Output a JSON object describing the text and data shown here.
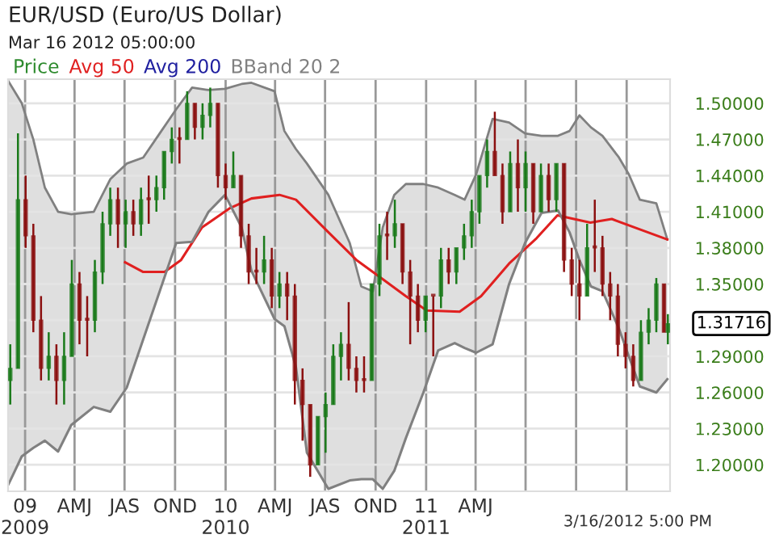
{
  "chart_data": {
    "type": "candlestick",
    "title": "EUR/USD (Euro/US Dollar)",
    "subtitle": "Mar 16 2012 05:00:00",
    "series": [
      {
        "name": "Price",
        "color": "#2e8b2e",
        "x": [
          "2008-12-05",
          "2008-12-19",
          "2009-01-02",
          "2009-01-16",
          "2009-01-30",
          "2009-02-13",
          "2009-02-27",
          "2009-03-13",
          "2009-03-27",
          "2009-04-10",
          "2009-04-24",
          "2009-05-08",
          "2009-05-22",
          "2009-06-05",
          "2009-06-19",
          "2009-07-03",
          "2009-07-17",
          "2009-07-31",
          "2009-08-14",
          "2009-08-28",
          "2009-09-11",
          "2009-09-25",
          "2009-10-09",
          "2009-10-23",
          "2009-11-06",
          "2009-11-20",
          "2009-12-04",
          "2009-12-18",
          "2010-01-01",
          "2010-01-15",
          "2010-01-29",
          "2010-02-12",
          "2010-02-26",
          "2010-03-12",
          "2010-03-26",
          "2010-04-09",
          "2010-04-23",
          "2010-05-07",
          "2010-05-21",
          "2010-06-04",
          "2010-06-18",
          "2010-07-02",
          "2010-07-16",
          "2010-07-30",
          "2010-08-13",
          "2010-08-27",
          "2010-09-10",
          "2010-09-24",
          "2010-10-08",
          "2010-10-22",
          "2010-11-05",
          "2010-11-19",
          "2010-12-03",
          "2010-12-17",
          "2010-12-31",
          "2011-01-14",
          "2011-01-28",
          "2011-02-11",
          "2011-02-25",
          "2011-03-11",
          "2011-03-25",
          "2011-04-08",
          "2011-04-22",
          "2011-05-06",
          "2011-05-20",
          "2011-06-03",
          "2011-06-17",
          "2011-07-01",
          "2011-07-15",
          "2011-07-29",
          "2011-08-12",
          "2011-08-26",
          "2011-09-09",
          "2011-09-23",
          "2011-10-07",
          "2011-10-21",
          "2011-11-04",
          "2011-11-18",
          "2011-12-02",
          "2011-12-16",
          "2011-12-30",
          "2012-01-13",
          "2012-01-27",
          "2012-02-10",
          "2012-02-24",
          "2012-03-09",
          "2012-03-16"
        ],
        "ohlc": [
          [
            1.27,
            1.3,
            1.25,
            1.28
          ],
          [
            1.28,
            1.475,
            1.28,
            1.42
          ],
          [
            1.42,
            1.44,
            1.38,
            1.39
          ],
          [
            1.39,
            1.4,
            1.31,
            1.32
          ],
          [
            1.32,
            1.34,
            1.27,
            1.28
          ],
          [
            1.28,
            1.31,
            1.27,
            1.29
          ],
          [
            1.29,
            1.3,
            1.25,
            1.27
          ],
          [
            1.27,
            1.31,
            1.25,
            1.29
          ],
          [
            1.29,
            1.37,
            1.29,
            1.35
          ],
          [
            1.35,
            1.36,
            1.3,
            1.32
          ],
          [
            1.32,
            1.34,
            1.29,
            1.32
          ],
          [
            1.32,
            1.37,
            1.31,
            1.36
          ],
          [
            1.36,
            1.41,
            1.35,
            1.4
          ],
          [
            1.4,
            1.43,
            1.39,
            1.42
          ],
          [
            1.42,
            1.43,
            1.38,
            1.4
          ],
          [
            1.4,
            1.42,
            1.38,
            1.41
          ],
          [
            1.41,
            1.42,
            1.39,
            1.4
          ],
          [
            1.4,
            1.43,
            1.39,
            1.42
          ],
          [
            1.42,
            1.44,
            1.4,
            1.42
          ],
          [
            1.42,
            1.44,
            1.41,
            1.43
          ],
          [
            1.43,
            1.46,
            1.42,
            1.46
          ],
          [
            1.46,
            1.48,
            1.45,
            1.47
          ],
          [
            1.47,
            1.48,
            1.45,
            1.47
          ],
          [
            1.47,
            1.51,
            1.47,
            1.5
          ],
          [
            1.5,
            1.5,
            1.47,
            1.48
          ],
          [
            1.48,
            1.5,
            1.47,
            1.49
          ],
          [
            1.49,
            1.513,
            1.48,
            1.5
          ],
          [
            1.5,
            1.5,
            1.43,
            1.44
          ],
          [
            1.44,
            1.45,
            1.42,
            1.43
          ],
          [
            1.43,
            1.46,
            1.43,
            1.44
          ],
          [
            1.44,
            1.44,
            1.38,
            1.39
          ],
          [
            1.39,
            1.4,
            1.35,
            1.36
          ],
          [
            1.36,
            1.38,
            1.35,
            1.36
          ],
          [
            1.36,
            1.39,
            1.35,
            1.37
          ],
          [
            1.37,
            1.38,
            1.33,
            1.34
          ],
          [
            1.34,
            1.36,
            1.33,
            1.35
          ],
          [
            1.35,
            1.36,
            1.32,
            1.34
          ],
          [
            1.34,
            1.35,
            1.25,
            1.27
          ],
          [
            1.27,
            1.28,
            1.22,
            1.25
          ],
          [
            1.25,
            1.25,
            1.19,
            1.2
          ],
          [
            1.2,
            1.24,
            1.2,
            1.24
          ],
          [
            1.24,
            1.26,
            1.21,
            1.25
          ],
          [
            1.25,
            1.3,
            1.25,
            1.29
          ],
          [
            1.29,
            1.31,
            1.27,
            1.3
          ],
          [
            1.3,
            1.335,
            1.27,
            1.28
          ],
          [
            1.28,
            1.29,
            1.26,
            1.27
          ],
          [
            1.27,
            1.29,
            1.26,
            1.27
          ],
          [
            1.27,
            1.35,
            1.27,
            1.35
          ],
          [
            1.35,
            1.4,
            1.34,
            1.39
          ],
          [
            1.39,
            1.41,
            1.37,
            1.39
          ],
          [
            1.39,
            1.42,
            1.38,
            1.4
          ],
          [
            1.4,
            1.4,
            1.35,
            1.36
          ],
          [
            1.36,
            1.37,
            1.3,
            1.34
          ],
          [
            1.34,
            1.35,
            1.31,
            1.32
          ],
          [
            1.32,
            1.34,
            1.31,
            1.34
          ],
          [
            1.34,
            1.34,
            1.29,
            1.34
          ],
          [
            1.34,
            1.38,
            1.33,
            1.37
          ],
          [
            1.37,
            1.38,
            1.35,
            1.36
          ],
          [
            1.36,
            1.38,
            1.35,
            1.38
          ],
          [
            1.38,
            1.4,
            1.37,
            1.39
          ],
          [
            1.39,
            1.42,
            1.38,
            1.41
          ],
          [
            1.41,
            1.44,
            1.4,
            1.44
          ],
          [
            1.44,
            1.47,
            1.43,
            1.46
          ],
          [
            1.46,
            1.493,
            1.44,
            1.44
          ],
          [
            1.44,
            1.45,
            1.4,
            1.41
          ],
          [
            1.41,
            1.46,
            1.41,
            1.45
          ],
          [
            1.45,
            1.47,
            1.41,
            1.43
          ],
          [
            1.43,
            1.46,
            1.41,
            1.45
          ],
          [
            1.45,
            1.45,
            1.4,
            1.41
          ],
          [
            1.41,
            1.45,
            1.41,
            1.44
          ],
          [
            1.44,
            1.45,
            1.41,
            1.42
          ],
          [
            1.42,
            1.45,
            1.41,
            1.45
          ],
          [
            1.45,
            1.45,
            1.36,
            1.37
          ],
          [
            1.37,
            1.38,
            1.34,
            1.35
          ],
          [
            1.35,
            1.37,
            1.32,
            1.34
          ],
          [
            1.34,
            1.4,
            1.34,
            1.38
          ],
          [
            1.38,
            1.42,
            1.36,
            1.38
          ],
          [
            1.38,
            1.39,
            1.34,
            1.35
          ],
          [
            1.35,
            1.36,
            1.32,
            1.34
          ],
          [
            1.34,
            1.35,
            1.29,
            1.3
          ],
          [
            1.3,
            1.31,
            1.28,
            1.29
          ],
          [
            1.29,
            1.3,
            1.265,
            1.27
          ],
          [
            1.27,
            1.32,
            1.27,
            1.31
          ],
          [
            1.31,
            1.33,
            1.3,
            1.32
          ],
          [
            1.32,
            1.355,
            1.31,
            1.35
          ],
          [
            1.35,
            1.35,
            1.31,
            1.31
          ],
          [
            1.31,
            1.325,
            1.3,
            1.317
          ]
        ],
        "colors": [
          "#1a7a1a",
          "#1a7a1a",
          "#8b1010",
          "#8b1010",
          "#8b1010",
          "#1a7a1a",
          "#8b1010",
          "#1a7a1a",
          "#1a7a1a",
          "#8b1010",
          "#8b1010",
          "#1a7a1a",
          "#1a7a1a",
          "#1a7a1a",
          "#8b1010",
          "#1a7a1a",
          "#8b1010",
          "#1a7a1a",
          "#8b1010",
          "#1a7a1a",
          "#1a7a1a",
          "#1a7a1a",
          "#8b1010",
          "#1a7a1a",
          "#8b1010",
          "#1a7a1a",
          "#1a7a1a",
          "#8b1010",
          "#8b1010",
          "#1a7a1a",
          "#8b1010",
          "#8b1010",
          "#8b1010",
          "#1a7a1a",
          "#8b1010",
          "#1a7a1a",
          "#8b1010",
          "#8b1010",
          "#8b1010",
          "#8b1010",
          "#1a7a1a",
          "#1a7a1a",
          "#1a7a1a",
          "#1a7a1a",
          "#8b1010",
          "#8b1010",
          "#8b1010",
          "#1a7a1a",
          "#1a7a1a",
          "#8b1010",
          "#1a7a1a",
          "#8b1010",
          "#8b1010",
          "#8b1010",
          "#1a7a1a",
          "#8b1010",
          "#1a7a1a",
          "#8b1010",
          "#1a7a1a",
          "#1a7a1a",
          "#1a7a1a",
          "#1a7a1a",
          "#1a7a1a",
          "#8b1010",
          "#8b1010",
          "#1a7a1a",
          "#8b1010",
          "#1a7a1a",
          "#8b1010",
          "#1a7a1a",
          "#8b1010",
          "#1a7a1a",
          "#8b1010",
          "#8b1010",
          "#8b1010",
          "#1a7a1a",
          "#8b1010",
          "#8b1010",
          "#8b1010",
          "#8b1010",
          "#8b1010",
          "#8b1010",
          "#1a7a1a",
          "#1a7a1a",
          "#1a7a1a",
          "#8b1010",
          "#1a7a1a"
        ]
      },
      {
        "name": "Avg 50",
        "type": "line",
        "color": "#e02020",
        "x": [
          "2009-07-02",
          "2009-08-04",
          "2009-09-12",
          "2009-10-12",
          "2009-11-19",
          "2010-01-09",
          "2010-02-17",
          "2010-04-09",
          "2010-05-09",
          "2010-07-07",
          "2010-08-27",
          "2010-10-05",
          "2010-11-25",
          "2011-01-02",
          "2011-03-03",
          "2011-04-11",
          "2011-06-01",
          "2011-07-21",
          "2011-08-28",
          "2011-10-27",
          "2011-12-05",
          "2012-01-15",
          "2012-03-15"
        ],
        "values": [
          1.368,
          1.36,
          1.36,
          1.37,
          1.397,
          1.413,
          1.421,
          1.424,
          1.42,
          1.393,
          1.37,
          1.357,
          1.34,
          1.328,
          1.327,
          1.34,
          1.367,
          1.388,
          1.407,
          1.401,
          1.404,
          1.397,
          1.387
        ]
      },
      {
        "name": "Avg 200",
        "type": "line",
        "color": "#2020a0"
      },
      {
        "name": "BBand 20 2",
        "type": "area",
        "color": "#808080",
        "x": [
          "2008-12-02",
          "2008-12-26",
          "2009-01-16",
          "2009-02-06",
          "2009-03-02",
          "2009-03-26",
          "2009-05-06",
          "2009-06-05",
          "2009-07-05",
          "2009-08-04",
          "2009-09-03",
          "2009-10-03",
          "2009-11-01",
          "2009-12-01",
          "2009-12-31",
          "2010-01-30",
          "2010-02-17",
          "2010-03-31",
          "2010-04-18",
          "2010-05-09",
          "2010-05-29",
          "2010-07-07",
          "2010-08-15",
          "2010-09-05",
          "2010-09-26",
          "2010-10-14",
          "2010-11-04",
          "2010-11-25",
          "2010-12-27",
          "2011-01-23",
          "2011-02-22",
          "2011-03-12",
          "2011-04-02",
          "2011-05-02",
          "2011-06-01",
          "2011-06-30",
          "2011-07-30",
          "2011-08-29",
          "2011-09-19",
          "2011-10-07",
          "2011-10-28",
          "2011-11-18",
          "2011-12-18",
          "2012-01-05",
          "2012-01-25",
          "2012-02-24",
          "2012-03-15"
        ],
        "values": [
          1.518,
          1.5,
          1.47,
          1.43,
          1.41,
          1.408,
          1.41,
          1.437,
          1.45,
          1.455,
          1.475,
          1.495,
          1.513,
          1.511,
          1.512,
          1.516,
          1.517,
          1.51,
          1.477,
          1.462,
          1.45,
          1.424,
          1.384,
          1.348,
          1.344,
          1.397,
          1.424,
          1.433,
          1.433,
          1.43,
          1.424,
          1.42,
          1.441,
          1.487,
          1.484,
          1.475,
          1.473,
          1.473,
          1.477,
          1.49,
          1.48,
          1.473,
          1.455,
          1.441,
          1.42,
          1.417,
          1.387
        ]
      },
      {
        "type": "line",
        "color": "#808080",
        "x": [
          "2008-12-02",
          "2008-12-26",
          "2009-01-16",
          "2009-02-06",
          "2009-03-02",
          "2009-03-26",
          "2009-05-06",
          "2009-06-05",
          "2009-07-05",
          "2009-08-04",
          "2009-09-03",
          "2009-10-03",
          "2009-11-01",
          "2009-12-01",
          "2009-12-31",
          "2010-01-30",
          "2010-02-17",
          "2010-03-31",
          "2010-04-18",
          "2010-05-09",
          "2010-05-29",
          "2010-07-07",
          "2010-08-15",
          "2010-09-05",
          "2010-09-26",
          "2010-10-14",
          "2010-11-04",
          "2010-11-25",
          "2010-12-27",
          "2011-01-23",
          "2011-02-22",
          "2011-03-12",
          "2011-04-02",
          "2011-05-02",
          "2011-06-01",
          "2011-06-30",
          "2011-07-30",
          "2011-08-29",
          "2011-09-19",
          "2011-10-07",
          "2011-10-28",
          "2011-11-18",
          "2011-12-18",
          "2012-01-05",
          "2012-01-25",
          "2012-02-24",
          "2012-03-15"
        ],
        "values": [
          1.184,
          1.207,
          1.214,
          1.22,
          1.211,
          1.233,
          1.248,
          1.244,
          1.264,
          1.304,
          1.344,
          1.384,
          1.385,
          1.41,
          1.424,
          1.397,
          1.361,
          1.321,
          1.315,
          1.281,
          1.21,
          1.18,
          1.187,
          1.188,
          1.188,
          1.18,
          1.195,
          1.222,
          1.26,
          1.295,
          1.301,
          1.297,
          1.293,
          1.3,
          1.35,
          1.384,
          1.409,
          1.411,
          1.393,
          1.37,
          1.348,
          1.344,
          1.313,
          1.29,
          1.265,
          1.26,
          1.271
        ]
      }
    ],
    "xlim": [
      "2008-12-01",
      "2012-03-20"
    ],
    "xticks": [
      {
        "value": "2009-01-01",
        "label": "09\n2009"
      },
      {
        "value": "2009-04-01",
        "label": "AMJ"
      },
      {
        "value": "2009-07-01",
        "label": "JAS"
      },
      {
        "value": "2009-10-01",
        "label": "OND"
      },
      {
        "value": "2010-01-01",
        "label": "10\n2010"
      },
      {
        "value": "2010-04-01",
        "label": "AMJ"
      },
      {
        "value": "2010-07-01",
        "label": "JAS"
      },
      {
        "value": "2010-10-01",
        "label": "OND"
      },
      {
        "value": "2011-01-01",
        "label": "11\n2011"
      },
      {
        "value": "2011-04-01",
        "label": "AMJ"
      },
      {
        "value": "2011-07-01",
        "label": null
      },
      {
        "value": "2011-10-01",
        "label": null
      },
      {
        "value": "2012-01-01",
        "label": null
      }
    ],
    "ylim": [
      1.178,
      1.52
    ],
    "yticks": [
      {
        "value": 1.2,
        "label": "1.20000"
      },
      {
        "value": 1.23,
        "label": "1.23000"
      },
      {
        "value": 1.26,
        "label": "1.26000"
      },
      {
        "value": 1.29,
        "label": "1.29000"
      },
      {
        "value": 1.32,
        "label": null
      },
      {
        "value": 1.35,
        "label": "1.35000"
      },
      {
        "value": 1.38,
        "label": "1.38000"
      },
      {
        "value": 1.41,
        "label": "1.41000"
      },
      {
        "value": 1.44,
        "label": "1.44000"
      },
      {
        "value": 1.47,
        "label": "1.47000"
      },
      {
        "value": 1.5,
        "label": "1.50000"
      }
    ],
    "grid": true,
    "legend": "top left",
    "annotations": [
      "3/16/2012 5:00 PM",
      {
        "text": "1.31716",
        "x": "2012-03-16",
        "y": 1.31716
      }
    ]
  }
}
